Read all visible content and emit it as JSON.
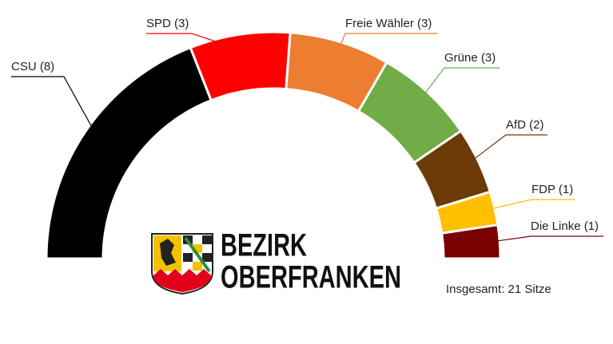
{
  "chart_data": {
    "type": "parliament",
    "categories": [
      "CSU (8)",
      "SPD (3)",
      "Freie Wähler (3)",
      "Grüne (3)",
      "AfD (2)",
      "FDP (1)",
      "Die Linke (1)"
    ],
    "values": [
      8,
      3,
      3,
      3,
      2,
      1,
      1
    ],
    "colors": [
      "#000000",
      "#ff0000",
      "#ed7d31",
      "#70ad47",
      "#6b3a06",
      "#ffc000",
      "#7b0000"
    ],
    "total_label": "Insgesamt: 21 Sitze"
  },
  "logo": {
    "line1": "BEZIRK",
    "line2": "OBERFRANKEN"
  }
}
